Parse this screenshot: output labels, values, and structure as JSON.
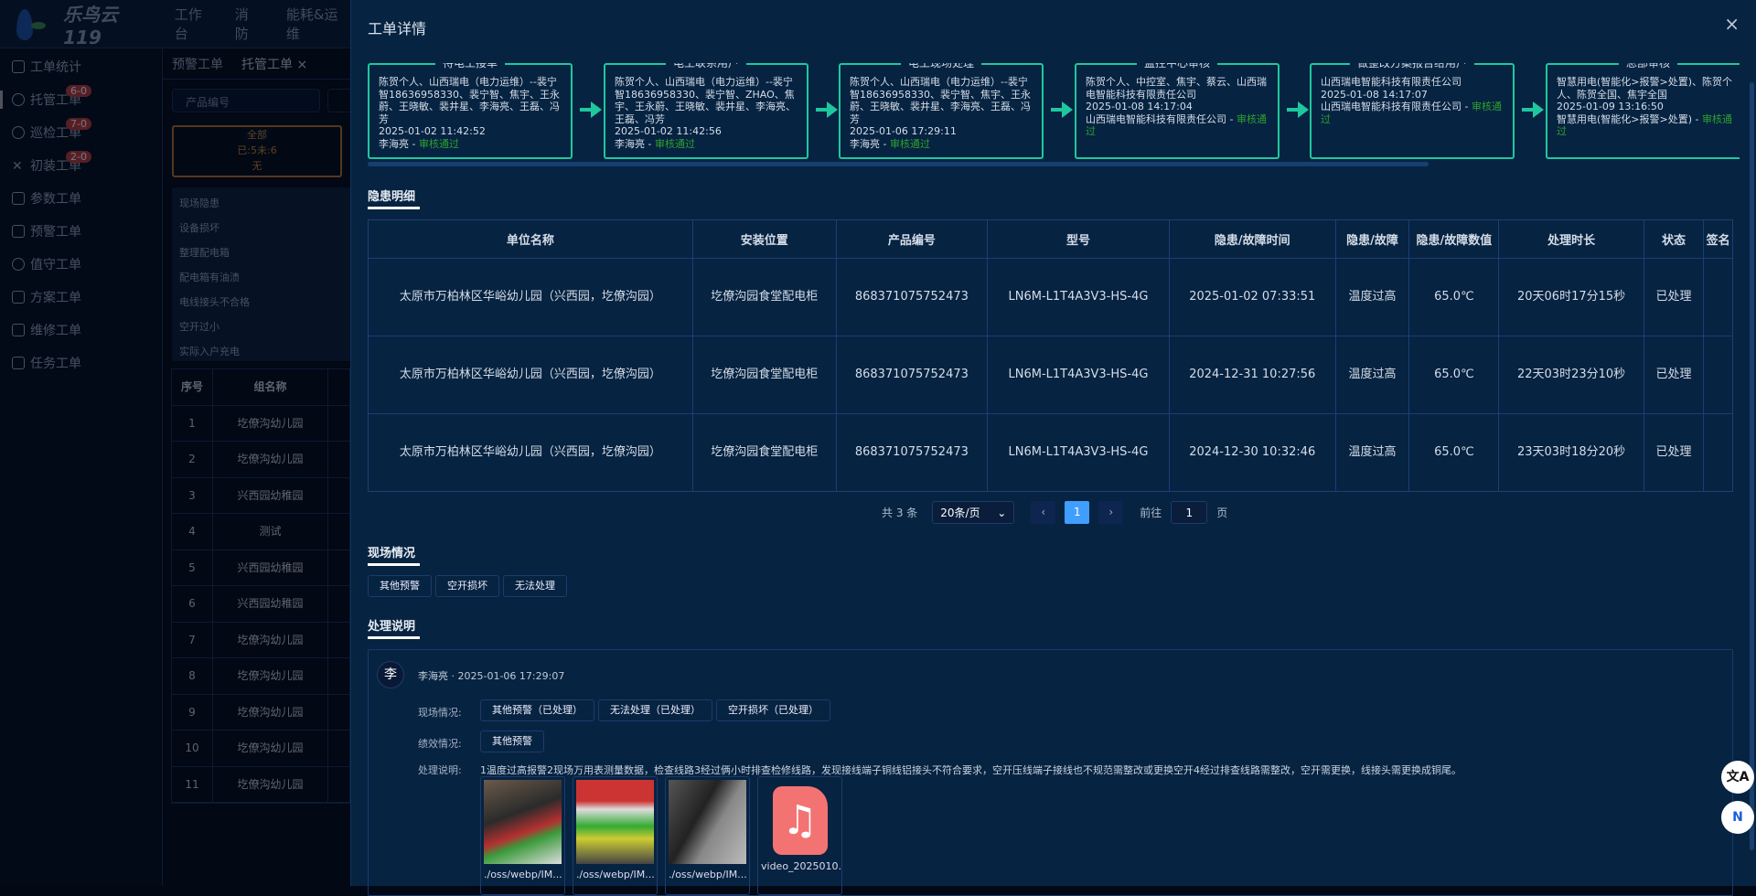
{
  "app": {
    "brand": "乐鸟云119",
    "nav": [
      "工作台",
      "消 防",
      "能耗&运维"
    ]
  },
  "sidebar": {
    "items": [
      {
        "label": "工单统计"
      },
      {
        "label": "托管工单",
        "badge": "6-0"
      },
      {
        "label": "巡检工单",
        "badge": "7-0"
      },
      {
        "label": "初装工单",
        "badge": "2-0"
      },
      {
        "label": "参数工单"
      },
      {
        "label": "预警工单"
      },
      {
        "label": "值守工单"
      },
      {
        "label": "方案工单"
      },
      {
        "label": "维修工单"
      },
      {
        "label": "任务工单"
      }
    ]
  },
  "bgpage": {
    "tabs": [
      "预警工单",
      "托管工单"
    ],
    "tab_close": "×",
    "search_placeholder": "产品编号",
    "all_box": {
      "title": "全部",
      "counts": "已:5未:6",
      "extra": "无"
    },
    "categories": [
      "现场隐患",
      "设备损坏",
      "整理配电箱",
      "配电箱有油渍",
      "电线接头不合格",
      "空开过小",
      "实际入户充电"
    ],
    "table": {
      "headers": [
        "序号",
        "组名称"
      ],
      "rows": [
        [
          "1",
          "圪僚沟幼儿园"
        ],
        [
          "2",
          "圪僚沟幼儿园"
        ],
        [
          "3",
          "兴西园幼稚园"
        ],
        [
          "4",
          "测试"
        ],
        [
          "5",
          "兴西园幼稚园"
        ],
        [
          "6",
          "兴西园幼稚园"
        ],
        [
          "7",
          "圪僚沟幼儿园"
        ],
        [
          "8",
          "圪僚沟幼儿园"
        ],
        [
          "9",
          "圪僚沟幼儿园"
        ],
        [
          "10",
          "圪僚沟幼儿园"
        ],
        [
          "11",
          "圪僚沟幼儿园"
        ]
      ]
    }
  },
  "drawer": {
    "title": "工单详情",
    "close": "×",
    "steps": [
      {
        "title": "待电工接单",
        "people": "陈贺个人、山西瑞电（电力运维）--裴宁智18636958330、裴宁智、焦宇、王永蔚、王晓敏、裴井星、李海亮、王磊、冯芳",
        "time": "2025-01-02 11:42:52",
        "actor": "李海亮 - ",
        "status": "审核通过"
      },
      {
        "title": "电工联系用户",
        "people": "陈贺个人、山西瑞电（电力运维）--裴宁智18636958330、裴宁智、ZHAO、焦宇、王永蔚、王晓敏、裴井星、李海亮、王磊、冯芳",
        "time": "2025-01-02 11:42:56",
        "actor": "李海亮 - ",
        "status": "审核通过"
      },
      {
        "title": "电工现场处理",
        "people": "陈贺个人、山西瑞电（电力运维）--裴宁智18636958330、裴宁智、焦宇、王永蔚、王晓敏、裴井星、李海亮、王磊、冯芳",
        "time": "2025-01-06 17:29:11",
        "actor": "李海亮 - ",
        "status": "审核通过"
      },
      {
        "title": "监控中心审核",
        "people": "陈贺个人、中控室、焦宇、蔡云、山西瑞电智能科技有限责任公司",
        "time": "2025-01-08 14:17:04",
        "actor": "山西瑞电智能科技有限责任公司 - ",
        "status": "审核通过"
      },
      {
        "title": "做整改方案报告给用户",
        "people": "山西瑞电智能科技有限责任公司",
        "time": "2025-01-08 14:17:07",
        "actor": "山西瑞电智能科技有限责任公司 - ",
        "status": "审核通过"
      },
      {
        "title": "总部审核",
        "people": "智慧用电(智能化>报警>处置)、陈贺个人、陈贺全国、焦宇全国",
        "time": "2025-01-09 13:16:50",
        "actor": "智慧用电(智能化>报警>处置) - ",
        "status": "审核通过"
      }
    ],
    "hazard": {
      "title": "隐患明细",
      "headers": [
        "单位名称",
        "安装位置",
        "产品编号",
        "型号",
        "隐患/故障时间",
        "隐患/故障",
        "隐患/故障数值",
        "处理时长",
        "状态",
        "签名"
      ],
      "rows": [
        [
          "太原市万柏林区华峪幼儿园（兴西园，圪僚沟园）",
          "圪僚沟园食堂配电柜",
          "868371075752473",
          "LN6M-L1T4A3V3-HS-4G",
          "2025-01-02 07:33:51",
          "温度过高",
          "65.0℃",
          "20天06时17分15秒",
          "已处理",
          ""
        ],
        [
          "太原市万柏林区华峪幼儿园（兴西园，圪僚沟园）",
          "圪僚沟园食堂配电柜",
          "868371075752473",
          "LN6M-L1T4A3V3-HS-4G",
          "2024-12-31 10:27:56",
          "温度过高",
          "65.0℃",
          "22天03时23分10秒",
          "已处理",
          ""
        ],
        [
          "太原市万柏林区华峪幼儿园（兴西园，圪僚沟园）",
          "圪僚沟园食堂配电柜",
          "868371075752473",
          "LN6M-L1T4A3V3-HS-4G",
          "2024-12-30 10:32:46",
          "温度过高",
          "65.0℃",
          "23天03时18分20秒",
          "已处理",
          ""
        ]
      ]
    },
    "pagination": {
      "total": "共 3 条",
      "page_size": "20条/页",
      "prev": "‹",
      "current": "1",
      "next": "›",
      "goto_label": "前往",
      "goto_value": "1",
      "page_suffix": "页"
    },
    "scene": {
      "title": "现场情况",
      "tags": [
        "其他预警",
        "空开损坏",
        "无法处理"
      ]
    },
    "process": {
      "title": "处理说明",
      "avatar": "李",
      "meta": "李海亮 · 2025-01-06 17:29:07",
      "scene_label": "现场情况:",
      "scene_tags": [
        "其他预警（已处理）",
        "无法处理（已处理）",
        "空开损坏（已处理）"
      ],
      "perf_label": "绩效情况:",
      "perf_tags": [
        "其他预警"
      ],
      "desc_label": "处理说明:",
      "desc": "1温度过高报警2现场万用表测量数据，检查线路3经过俩小时排查检修线路，发现接线端子铜线铝接头不符合要求，空开压线端子接线也不规范需整改或更换空开4经过排查线路需整改，空开需更换，线接头需更换成铜尾。",
      "files": [
        "./oss/webp/IM...",
        "./oss/webp/IM...",
        "./oss/webp/IM...",
        "video_2025010..."
      ]
    }
  },
  "floating": {
    "translate_icon": "文A",
    "plugin_icon": "N"
  },
  "colors": {
    "accent": "#1fc79e",
    "approved": "#2ea12e",
    "badge": "#c0393b",
    "page_active": "#409eff",
    "all_box": "#b8742f"
  }
}
